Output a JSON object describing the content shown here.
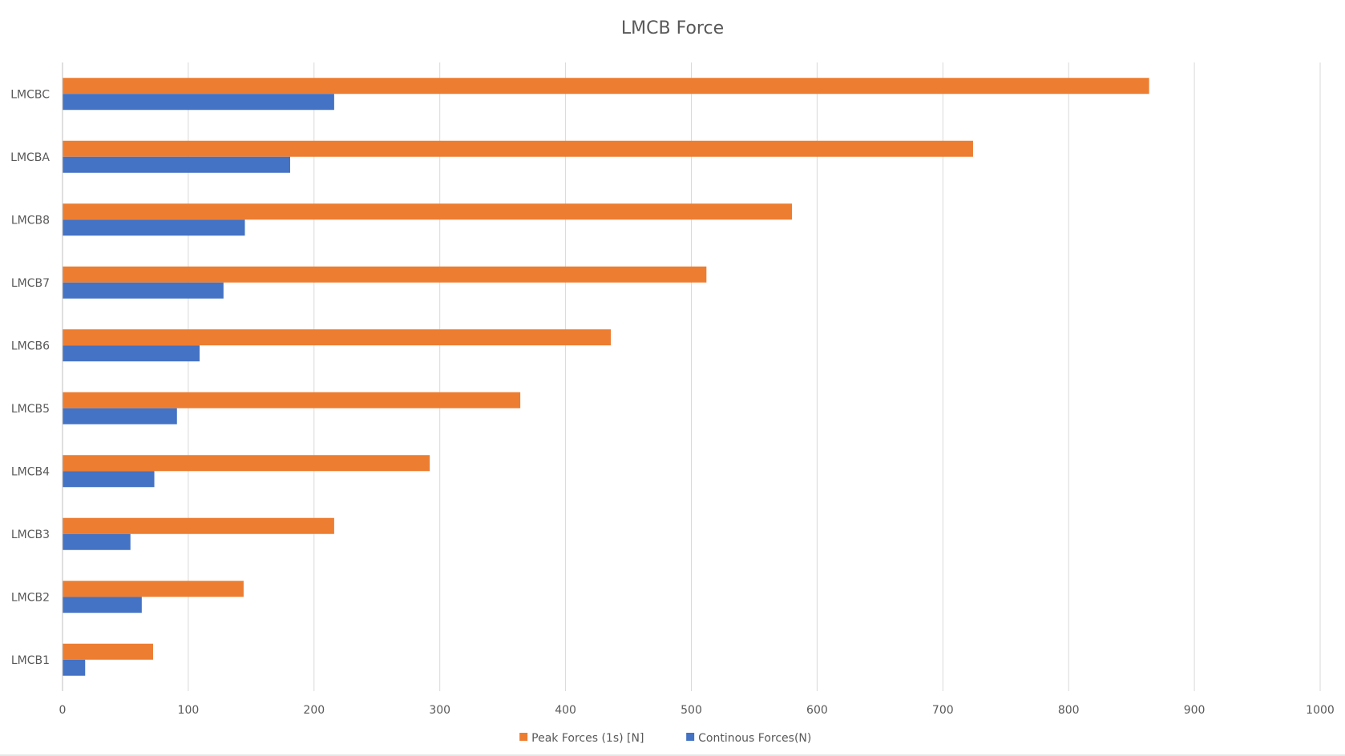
{
  "chart_data": {
    "type": "bar",
    "orientation": "horizontal",
    "title": "LMCB Force",
    "xlabel": "",
    "ylabel": "",
    "xlim": [
      0,
      1000
    ],
    "x_ticks": [
      0,
      100,
      200,
      300,
      400,
      500,
      600,
      700,
      800,
      900,
      1000
    ],
    "grid": true,
    "legend_position": "bottom",
    "categories": [
      "LMCB1",
      "LMCB2",
      "LMCB3",
      "LMCB4",
      "LMCB5",
      "LMCB6",
      "LMCB7",
      "LMCB8",
      "LMCBA",
      "LMCBC"
    ],
    "series": [
      {
        "name": "Peak Forces (1s) [N]",
        "color": "#ed7d31",
        "values": [
          72,
          144,
          216,
          292,
          364,
          436,
          512,
          580,
          724,
          864
        ]
      },
      {
        "name": "Continous Forces(N)",
        "color": "#4472c4",
        "values": [
          18,
          63,
          54,
          73,
          91,
          109,
          128,
          145,
          181,
          216
        ]
      }
    ]
  }
}
